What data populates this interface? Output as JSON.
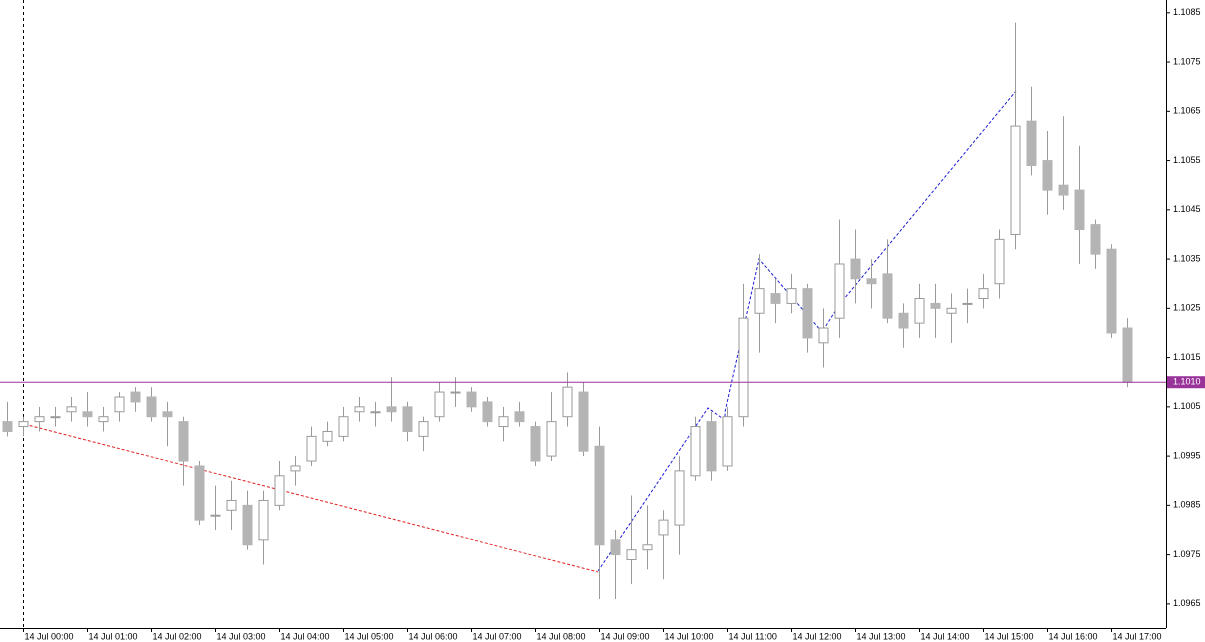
{
  "chart_data": {
    "type": "candlestick",
    "categories": [
      null,
      "14 Jul 00:00",
      null,
      null,
      null,
      "14 Jul 01:00",
      null,
      null,
      null,
      "14 Jul 02:00",
      null,
      null,
      null,
      "14 Jul 03:00",
      null,
      null,
      null,
      "14 Jul 04:00",
      null,
      null,
      null,
      "14 Jul 05:00",
      null,
      null,
      null,
      "14 Jul 06:00",
      null,
      null,
      null,
      "14 Jul 07:00",
      null,
      null,
      null,
      "14 Jul 08:00",
      null,
      null,
      null,
      "14 Jul 09:00",
      null,
      null,
      null,
      "14 Jul 10:00",
      null,
      null,
      null,
      "14 Jul 11:00",
      null,
      null,
      null,
      "14 Jul 12:00",
      null,
      null,
      null,
      "14 Jul 13:00",
      null,
      null,
      null,
      "14 Jul 14:00",
      null,
      null,
      null,
      "14 Jul 15:00",
      null,
      null,
      null,
      "14 Jul 16:00",
      null,
      null,
      null,
      "14 Jul 17:00",
      null
    ],
    "open": [
      1.1002,
      1.1001,
      1.1002,
      1.1003,
      1.1004,
      1.1004,
      1.1002,
      1.1004,
      1.1008,
      1.1007,
      1.1004,
      1.1002,
      1.0993,
      1.0983,
      1.0984,
      1.0985,
      1.0978,
      1.0985,
      1.0992,
      1.0994,
      1.0998,
      1.0999,
      1.1004,
      1.1004,
      1.1005,
      1.1005,
      1.0999,
      1.1003,
      1.1008,
      1.1008,
      1.1006,
      1.1001,
      1.1004,
      1.1001,
      1.0995,
      1.1003,
      1.1008,
      1.0997,
      1.0978,
      1.0974,
      1.0976,
      1.0979,
      1.0981,
      1.0991,
      1.1002,
      1.0993,
      1.1003,
      1.1024,
      1.1028,
      1.1026,
      1.1029,
      1.1018,
      1.1023,
      1.1035,
      1.1031,
      1.1032,
      1.1024,
      1.1022,
      1.1026,
      1.1024,
      1.1026,
      1.1027,
      1.103,
      1.104,
      1.1063,
      1.1055,
      1.105,
      1.1049,
      1.1042,
      1.1037,
      1.1021
    ],
    "high": [
      1.1006,
      1.1003,
      1.1005,
      1.1005,
      1.1007,
      1.1008,
      1.1005,
      1.1008,
      1.1009,
      1.1009,
      1.1006,
      1.1003,
      1.0994,
      1.0989,
      1.099,
      1.0988,
      1.0988,
      1.0994,
      1.0995,
      1.1001,
      1.1002,
      1.1005,
      1.1007,
      1.1006,
      1.1011,
      1.1006,
      1.1003,
      1.101,
      1.1011,
      1.1009,
      1.1007,
      1.1005,
      1.1006,
      1.1002,
      1.1008,
      1.1012,
      1.101,
      1.1001,
      1.098,
      1.0987,
      1.0985,
      1.0984,
      1.0995,
      1.1003,
      1.1004,
      1.1005,
      1.103,
      1.1036,
      1.1031,
      1.1032,
      1.103,
      1.1025,
      1.1043,
      1.1041,
      1.1035,
      1.1039,
      1.1026,
      1.103,
      1.103,
      1.1028,
      1.1029,
      1.1032,
      1.1041,
      1.1083,
      1.107,
      1.1061,
      1.1064,
      1.1058,
      1.1043,
      1.1038,
      1.1023
    ],
    "low": [
      1.0999,
      1.0999,
      1.1,
      1.1001,
      1.1002,
      1.1001,
      1.1,
      1.1002,
      1.1004,
      1.1002,
      1.0997,
      1.0989,
      1.0981,
      1.098,
      1.098,
      1.0976,
      1.0973,
      1.0984,
      1.0989,
      1.0993,
      1.0997,
      1.0998,
      1.1002,
      1.1001,
      1.1002,
      1.0998,
      1.0996,
      1.1002,
      1.1005,
      1.1004,
      1.1001,
      1.0998,
      1.1001,
      1.0993,
      1.0994,
      1.1001,
      1.0995,
      1.0966,
      1.0966,
      1.0969,
      1.0972,
      1.097,
      1.0975,
      1.099,
      1.099,
      1.0992,
      1.1001,
      1.1016,
      1.1022,
      1.1024,
      1.1016,
      1.1013,
      1.1019,
      1.1026,
      1.1025,
      1.1022,
      1.1017,
      1.1019,
      1.1019,
      1.1018,
      1.1022,
      1.1025,
      1.1027,
      1.1037,
      1.1052,
      1.1044,
      1.1045,
      1.1034,
      1.1033,
      1.1019,
      1.1009
    ],
    "close": [
      1.1,
      1.1002,
      1.1003,
      1.1003,
      1.1005,
      1.1003,
      1.1003,
      1.1007,
      1.1006,
      1.1003,
      1.1003,
      1.0994,
      1.0982,
      1.0983,
      1.0986,
      1.0977,
      1.0986,
      1.0991,
      1.0993,
      1.0999,
      1.1,
      1.1003,
      1.1005,
      1.1004,
      1.1004,
      1.1,
      1.1002,
      1.1008,
      1.1008,
      1.1005,
      1.1002,
      1.1003,
      1.1002,
      1.0994,
      1.1002,
      1.1009,
      1.0996,
      1.0977,
      1.0975,
      1.0976,
      1.0977,
      1.0982,
      1.0992,
      1.1001,
      1.0992,
      1.1003,
      1.1023,
      1.1029,
      1.1026,
      1.1029,
      1.1019,
      1.1021,
      1.1034,
      1.1031,
      1.103,
      1.1023,
      1.1021,
      1.1027,
      1.1025,
      1.1025,
      1.1026,
      1.1029,
      1.1039,
      1.1062,
      1.1054,
      1.1049,
      1.1048,
      1.1041,
      1.1036,
      1.102,
      1.101
    ],
    "up_color": "#ffffff",
    "down_color": "#b4b4b4",
    "wick_color": "#9a9a9a",
    "ylim": [
      1.09601,
      1.10876
    ],
    "yticks": [
      1.0965,
      1.0975,
      1.0985,
      1.0995,
      1.1005,
      1.1015,
      1.1025,
      1.1035,
      1.1045,
      1.1055,
      1.1065,
      1.1075,
      1.1085
    ],
    "price_line": {
      "value": 1.101,
      "label": "1.1010"
    },
    "price_line_color": "#993399"
  }
}
